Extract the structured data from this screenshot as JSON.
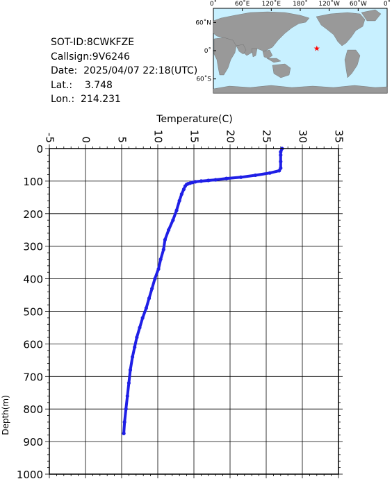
{
  "info": {
    "sot_id": "SOT-ID:8CWKFZE",
    "callsign": "Callsign:9V6246",
    "date": "Date:  2025/04/07 22:18(UTC)",
    "lat": "Lat.:    3.748",
    "lon": "Lon.:  214.231"
  },
  "map": {
    "top_labels": [
      "0˚",
      "60˚E",
      "120˚E",
      "180˚",
      "120˚W",
      "60˚W",
      "0˚"
    ],
    "left_labels": [
      "60˚N",
      "0˚",
      "60˚S"
    ],
    "ocean_color": "#c8f0ff",
    "land_color": "#999999",
    "marker": {
      "lat": 3.748,
      "lon": 214.231,
      "symbol": "★",
      "color": "#ff0000"
    }
  },
  "chart_data": {
    "type": "line",
    "xlabel": "Temperature(C)",
    "ylabel": "Depth(m)",
    "xlim": [
      -5,
      35
    ],
    "ylim": [
      1000,
      0
    ],
    "x_ticks": [
      "-5",
      "0",
      "5",
      "10",
      "15",
      "20",
      "25",
      "30",
      "35"
    ],
    "y_ticks": [
      "0",
      "100",
      "200",
      "300",
      "400",
      "500",
      "600",
      "700",
      "800",
      "900",
      "1000"
    ],
    "line_color": "#1f1fe6",
    "grid": true,
    "series": [
      {
        "depth": [
          0,
          10,
          20,
          40,
          60,
          68,
          75,
          82,
          88,
          92,
          96,
          98,
          100,
          102,
          104,
          106,
          108,
          110,
          115,
          125,
          140,
          160,
          190,
          220,
          250,
          280,
          310,
          340,
          370,
          400,
          430,
          460,
          490,
          520,
          550,
          580,
          610,
          640,
          680,
          720,
          760,
          800,
          840,
          875
        ],
        "temperature": [
          27.2,
          27.0,
          27.0,
          27.0,
          27.0,
          26.8,
          25.5,
          23.5,
          21.5,
          19.5,
          18.0,
          17.0,
          16.0,
          15.2,
          14.8,
          14.5,
          14.2,
          14.0,
          13.8,
          13.6,
          13.3,
          13.0,
          12.6,
          12.1,
          11.5,
          11.0,
          10.8,
          10.4,
          10.1,
          9.6,
          9.2,
          8.8,
          8.4,
          7.9,
          7.5,
          7.1,
          6.8,
          6.5,
          6.2,
          6.0,
          5.8,
          5.6,
          5.4,
          5.3
        ]
      }
    ]
  }
}
